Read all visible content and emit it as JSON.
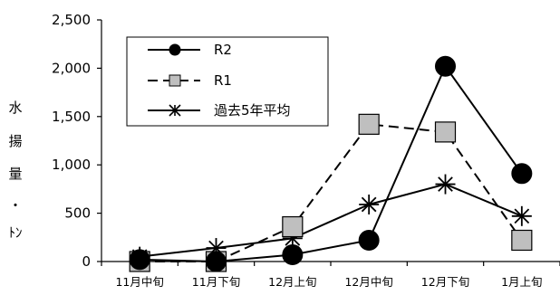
{
  "chart_data": {
    "type": "line",
    "categories": [
      "11月中旬",
      "11月下旬",
      "12月上旬",
      "12月中旬",
      "12月下旬",
      "1月上旬"
    ],
    "ylabel_chars": [
      "水",
      "揚",
      "量",
      "・",
      "ﾄﾝ"
    ],
    "ylim": [
      0,
      2500
    ],
    "yticks": [
      0,
      500,
      1000,
      1500,
      2000,
      2500
    ],
    "ytick_labels": [
      "0",
      "500",
      "1,000",
      "1,500",
      "2,000",
      "2,500"
    ],
    "grid": false,
    "legend_position": "top-left",
    "series": [
      {
        "name": "R2",
        "values": [
          20,
          0,
          70,
          220,
          2020,
          910
        ],
        "marker": "circle",
        "dash": "solid",
        "color": "#000000",
        "fill": "#000000"
      },
      {
        "name": "R1",
        "values": [
          0,
          0,
          360,
          1420,
          1340,
          220
        ],
        "marker": "square",
        "dash": "dashed",
        "color": "#000000",
        "fill": "#bfbfbf"
      },
      {
        "name": "過去5年平均",
        "values": [
          50,
          140,
          240,
          590,
          800,
          470
        ],
        "marker": "asterisk",
        "dash": "solid",
        "color": "#000000",
        "fill": "none"
      }
    ]
  }
}
